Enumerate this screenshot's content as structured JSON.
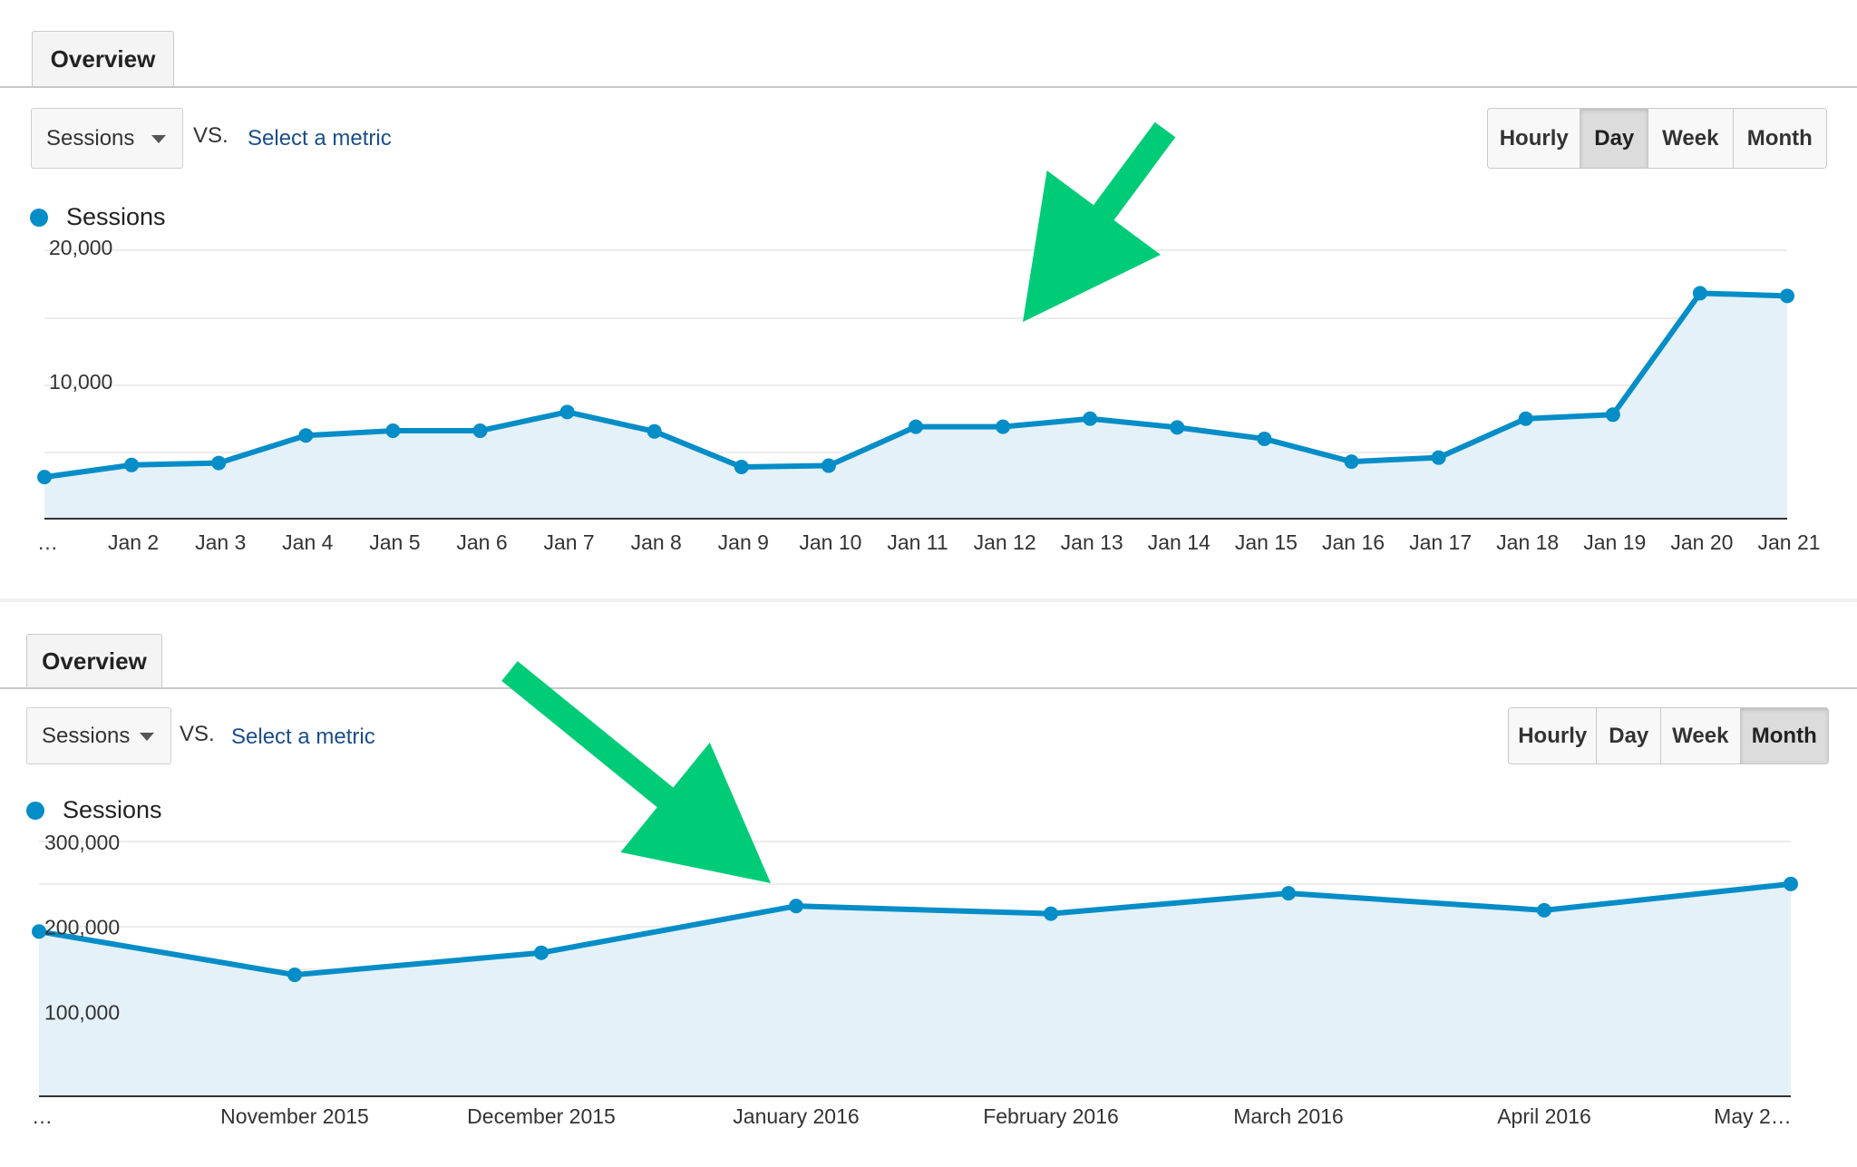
{
  "panels": [
    {
      "tab_label": "Overview",
      "metric_select": "Sessions",
      "vs_label": "VS.",
      "compare_link": "Select a metric",
      "granularity": {
        "options": [
          "Hourly",
          "Day",
          "Week",
          "Month"
        ],
        "selected": "Day"
      },
      "legend_label": "Sessions"
    },
    {
      "tab_label": "Overview",
      "metric_select": "Sessions",
      "vs_label": "VS.",
      "compare_link": "Select a metric",
      "granularity": {
        "options": [
          "Hourly",
          "Day",
          "Week",
          "Month"
        ],
        "selected": "Month"
      },
      "legend_label": "Sessions"
    }
  ],
  "colors": {
    "line": "#058dc7",
    "fill": "#e4f1f9",
    "arrow": "#00cc77",
    "grid": "#e6e6e6"
  },
  "chart_data": [
    {
      "type": "area",
      "series": [
        {
          "name": "Sessions",
          "values": [
            3100,
            4000,
            4150,
            6200,
            6550,
            6550,
            7950,
            6500,
            3850,
            3950,
            6850,
            6850,
            7450,
            6800,
            5950,
            4250,
            4550,
            7450,
            7750,
            16800,
            16600
          ]
        }
      ],
      "x": [
        "…",
        "Jan 2",
        "Jan 3",
        "Jan 4",
        "Jan 5",
        "Jan 6",
        "Jan 7",
        "Jan 8",
        "Jan 9",
        "Jan 10",
        "Jan 11",
        "Jan 12",
        "Jan 13",
        "Jan 14",
        "Jan 15",
        "Jan 16",
        "Jan 17",
        "Jan 18",
        "Jan 19",
        "Jan 20",
        "Jan 21"
      ],
      "yticks": [
        {
          "value": 10000,
          "label": "10,000"
        },
        {
          "value": 20000,
          "label": "20,000"
        }
      ],
      "ylim": [
        0,
        20000
      ],
      "grid": true,
      "annotation": {
        "type": "arrow",
        "points_to": "Jan 16"
      }
    },
    {
      "type": "area",
      "series": [
        {
          "name": "Sessions",
          "values": [
            194000,
            143000,
            169000,
            224000,
            215000,
            239000,
            219000,
            250000
          ]
        }
      ],
      "x": [
        "…",
        "November 2015",
        "December 2015",
        "January 2016",
        "February 2016",
        "March 2016",
        "April 2016",
        "May 2…"
      ],
      "yticks": [
        {
          "value": 100000,
          "label": "100,000"
        },
        {
          "value": 200000,
          "label": "200,000"
        },
        {
          "value": 300000,
          "label": "300,000"
        }
      ],
      "ylim": [
        0,
        300000
      ],
      "grid": true,
      "annotation": {
        "type": "arrow",
        "points_to": "January 2016"
      }
    }
  ]
}
